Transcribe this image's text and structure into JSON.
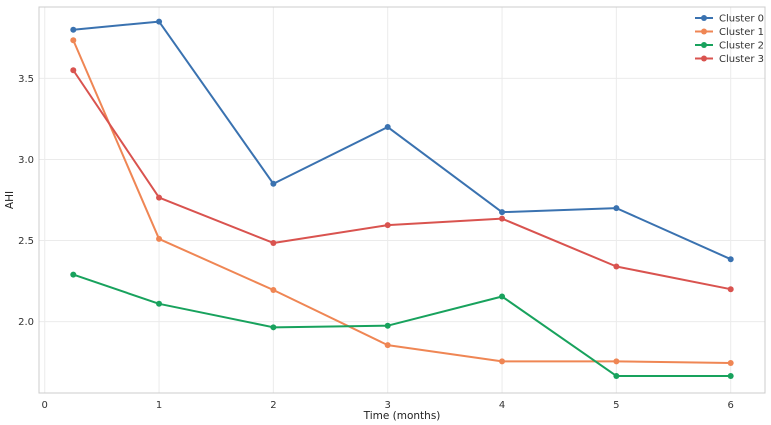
{
  "chart_data": {
    "type": "line",
    "xlabel": "Time (months)",
    "ylabel": "AHI",
    "xlim": [
      -0.05,
      6.3
    ],
    "ylim": [
      1.56,
      3.94
    ],
    "x_ticks": [
      0,
      1,
      2,
      3,
      4,
      5,
      6
    ],
    "y_ticks": [
      2.0,
      2.5,
      3.0,
      3.5
    ],
    "y_tick_labels": [
      "2.0",
      "2.5",
      "3.0",
      "3.5"
    ],
    "grid": true,
    "legend": "top-right",
    "x": [
      0.25,
      1,
      2,
      3,
      4,
      5,
      6
    ],
    "series": [
      {
        "name": "Cluster 0",
        "color": "#3a72b0",
        "values": [
          3.8,
          3.85,
          2.85,
          3.2,
          2.675,
          2.7,
          2.385
        ]
      },
      {
        "name": "Cluster 1",
        "color": "#ef8654",
        "values": [
          3.735,
          2.51,
          2.195,
          1.855,
          1.755,
          1.755,
          1.745
        ]
      },
      {
        "name": "Cluster 2",
        "color": "#18a25d",
        "values": [
          2.29,
          2.11,
          1.965,
          1.975,
          2.155,
          1.665,
          1.665
        ]
      },
      {
        "name": "Cluster 3",
        "color": "#d9534f",
        "values": [
          3.55,
          2.765,
          2.485,
          2.595,
          2.635,
          2.34,
          2.2
        ]
      }
    ]
  }
}
